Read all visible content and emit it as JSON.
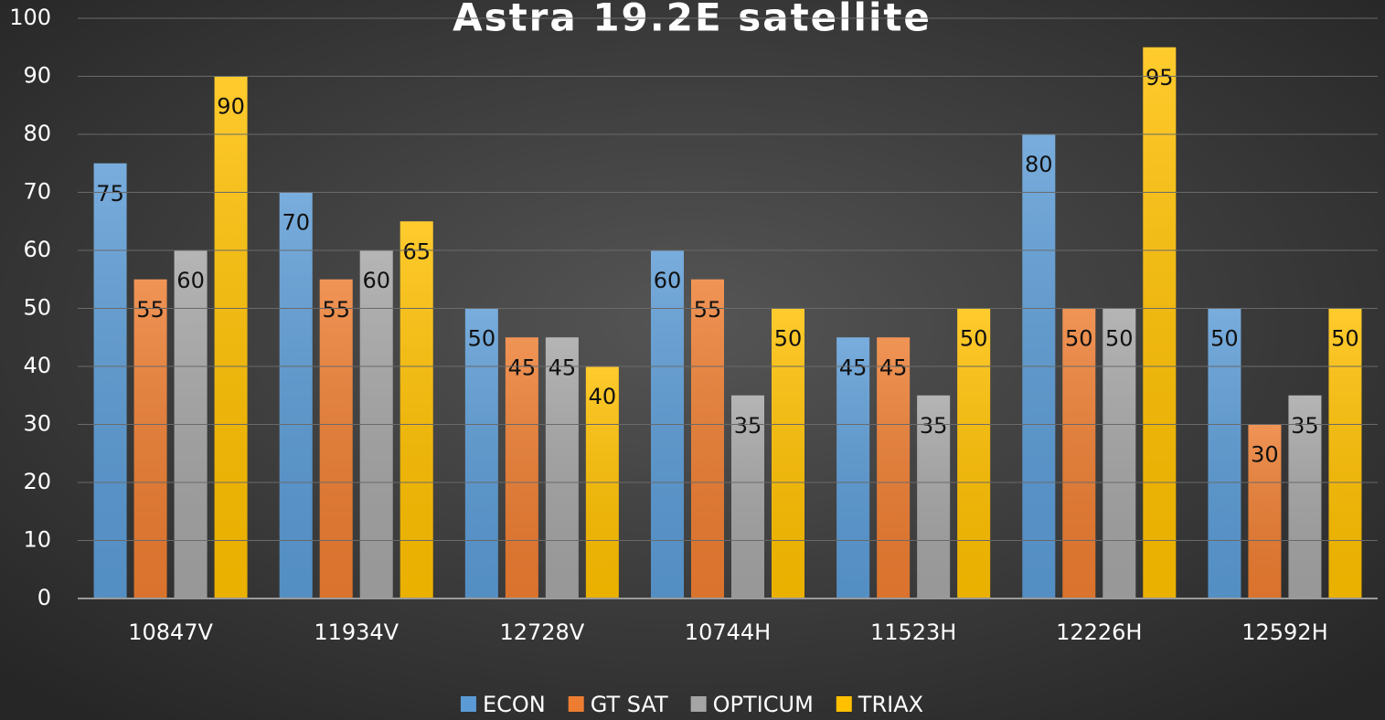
{
  "chart_data": {
    "type": "bar",
    "title": "Astra 19.2E satellite",
    "categories": [
      "10847V",
      "11934V",
      "12728V",
      "10744H",
      "11523H",
      "12226H",
      "12592H"
    ],
    "series": [
      {
        "name": "ECON",
        "color": "#5b9bd5",
        "values": [
          75,
          70,
          50,
          60,
          45,
          80,
          50
        ]
      },
      {
        "name": "GT SAT",
        "color": "#ed7d31",
        "values": [
          55,
          55,
          45,
          55,
          45,
          50,
          30
        ]
      },
      {
        "name": "OPTICUM",
        "color": "#a5a5a5",
        "values": [
          60,
          60,
          45,
          35,
          35,
          50,
          35
        ]
      },
      {
        "name": "TRIAX",
        "color": "#ffc000",
        "values": [
          90,
          65,
          40,
          50,
          50,
          95,
          50
        ]
      }
    ],
    "ylim": [
      0,
      100
    ],
    "yticks": [
      0,
      10,
      20,
      30,
      40,
      50,
      60,
      70,
      80,
      90,
      100
    ],
    "grid": true,
    "legend": "bottom"
  }
}
